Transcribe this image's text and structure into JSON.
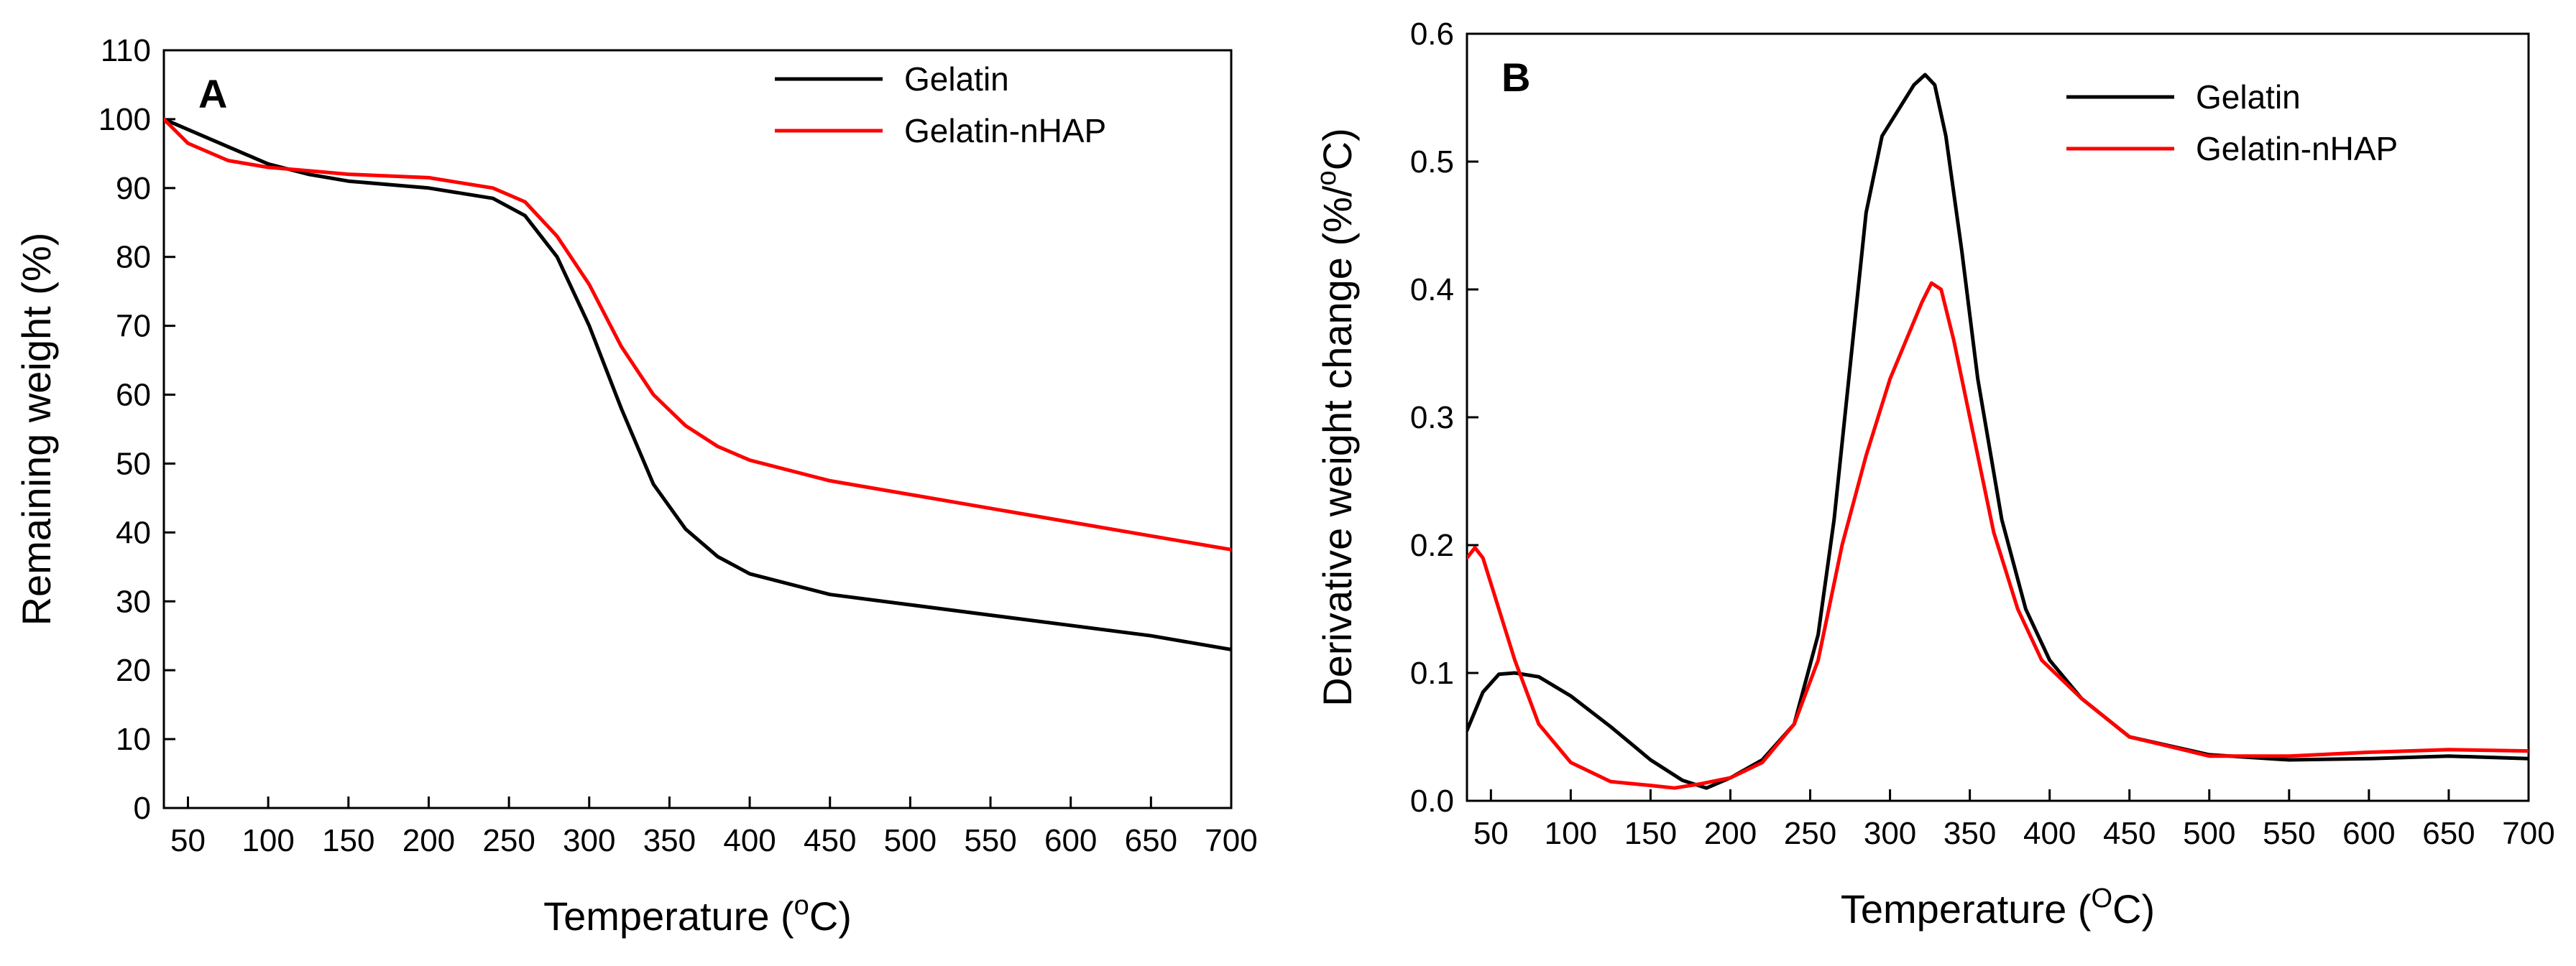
{
  "chart_data": [
    {
      "type": "line",
      "panel_label": "A",
      "xlabel_prefix": "Temperature (",
      "xlabel_sup": "o",
      "xlabel_suffix": "C)",
      "ylabel": "Remaining weight (%)",
      "xlim": [
        35,
        700
      ],
      "ylim": [
        0,
        110
      ],
      "xticks": [
        50,
        100,
        150,
        200,
        250,
        300,
        350,
        400,
        450,
        500,
        550,
        600,
        650,
        700
      ],
      "yticks": [
        0,
        10,
        20,
        30,
        40,
        50,
        60,
        70,
        80,
        90,
        100,
        110
      ],
      "legend_position": "top-right",
      "series": [
        {
          "name": "Gelatin",
          "color": "#000000",
          "x": [
            35,
            50,
            75,
            100,
            125,
            150,
            200,
            240,
            260,
            280,
            300,
            320,
            340,
            360,
            380,
            400,
            450,
            500,
            550,
            600,
            650,
            700
          ],
          "y": [
            100,
            98.5,
            96,
            93.5,
            92,
            91,
            90,
            88.5,
            86,
            80,
            70,
            58,
            47,
            40.5,
            36.5,
            34,
            31,
            29.5,
            28,
            26.5,
            25,
            23
          ]
        },
        {
          "name": "Gelatin-nHAP",
          "color": "#ff0000",
          "x": [
            35,
            50,
            75,
            100,
            125,
            150,
            200,
            240,
            260,
            280,
            300,
            320,
            340,
            360,
            380,
            400,
            450,
            500,
            550,
            600,
            650,
            700
          ],
          "y": [
            100,
            96.5,
            94,
            93,
            92.5,
            92,
            91.5,
            90,
            88,
            83,
            76,
            67,
            60,
            55.5,
            52.5,
            50.5,
            47.5,
            45.5,
            43.5,
            41.5,
            39.5,
            37.5
          ]
        }
      ]
    },
    {
      "type": "line",
      "panel_label": "B",
      "xlabel_prefix": "Temperature (",
      "xlabel_sup": "O",
      "xlabel_suffix": "C)",
      "ylabel_prefix": "Derivative weight change (%/",
      "ylabel_sup": "o",
      "ylabel_suffix": "C)",
      "xlim": [
        35,
        700
      ],
      "ylim": [
        0,
        0.6
      ],
      "xticks": [
        50,
        100,
        150,
        200,
        250,
        300,
        350,
        400,
        450,
        500,
        550,
        600,
        650,
        700
      ],
      "yticks": [
        0.0,
        0.1,
        0.2,
        0.3,
        0.4,
        0.5,
        0.6
      ],
      "ytick_labels": [
        "0.0",
        "0.1",
        "0.2",
        "0.3",
        "0.4",
        "0.5",
        "0.6"
      ],
      "legend_position": "top-right",
      "series": [
        {
          "name": "Gelatin",
          "color": "#000000",
          "x": [
            35,
            45,
            55,
            65,
            80,
            100,
            125,
            150,
            170,
            185,
            200,
            220,
            240,
            255,
            265,
            275,
            285,
            295,
            305,
            315,
            322,
            328,
            335,
            345,
            355,
            370,
            385,
            400,
            420,
            450,
            500,
            550,
            600,
            650,
            700
          ],
          "y": [
            0.055,
            0.085,
            0.099,
            0.1,
            0.097,
            0.082,
            0.058,
            0.032,
            0.016,
            0.01,
            0.018,
            0.032,
            0.06,
            0.13,
            0.22,
            0.34,
            0.46,
            0.52,
            0.54,
            0.56,
            0.568,
            0.56,
            0.52,
            0.43,
            0.33,
            0.22,
            0.15,
            0.11,
            0.08,
            0.05,
            0.036,
            0.032,
            0.033,
            0.035,
            0.033
          ]
        },
        {
          "name": "Gelatin-nHAP",
          "color": "#ff0000",
          "x": [
            35,
            40,
            45,
            55,
            65,
            80,
            100,
            125,
            150,
            165,
            180,
            200,
            220,
            240,
            255,
            270,
            285,
            300,
            310,
            320,
            326,
            332,
            340,
            350,
            365,
            380,
            395,
            420,
            450,
            500,
            550,
            600,
            650,
            700
          ],
          "y": [
            0.19,
            0.198,
            0.19,
            0.15,
            0.11,
            0.06,
            0.03,
            0.015,
            0.012,
            0.01,
            0.013,
            0.018,
            0.03,
            0.06,
            0.11,
            0.2,
            0.27,
            0.33,
            0.36,
            0.39,
            0.405,
            0.4,
            0.36,
            0.3,
            0.21,
            0.15,
            0.11,
            0.08,
            0.05,
            0.035,
            0.035,
            0.038,
            0.04,
            0.039
          ]
        }
      ]
    }
  ]
}
